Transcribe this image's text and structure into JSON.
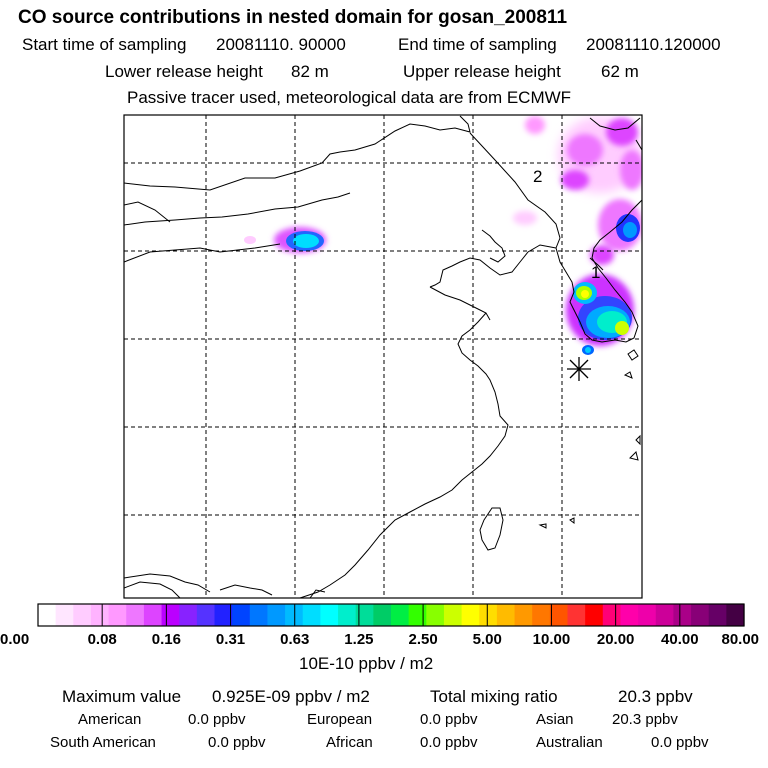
{
  "title": "CO  source contributions in nested domain for gosan_200811",
  "sampling": {
    "start_label": "Start time of sampling",
    "start_value": "20081110. 90000",
    "end_label": "End time of sampling",
    "end_value": "20081110.120000"
  },
  "release": {
    "lower_label": "Lower release height",
    "lower_value": "82 m",
    "upper_label": "Upper release height",
    "upper_value": "62 m"
  },
  "note": "Passive tracer used, meteorological data are from ECMWF",
  "map": {
    "labels": [
      {
        "id": "region-label-1",
        "text": "1"
      },
      {
        "id": "region-label-2",
        "text": "2"
      }
    ],
    "receptor_marker": "asterisk",
    "colors": {
      "coast": "#000000",
      "grid": "#000000",
      "frame": "#000000"
    }
  },
  "colorbar": {
    "tick_labels": [
      "0.00",
      "0.08",
      "0.16",
      "0.31",
      "0.63",
      "1.25",
      "2.50",
      "5.00",
      "10.00",
      "20.00",
      "40.00",
      "80.00"
    ],
    "unit": "10E-10 ppbv / m2",
    "colors": [
      "#ffffff",
      "#ffe6ff",
      "#ffccff",
      "#ffb3ff",
      "#ff99ff",
      "#ee77ff",
      "#dd44ff",
      "#bb00ff",
      "#8822ff",
      "#5533ff",
      "#2222ff",
      "#0044ff",
      "#0077ff",
      "#0099ff",
      "#00bbff",
      "#00ddff",
      "#00ffff",
      "#00eecc",
      "#00dd99",
      "#00cc66",
      "#00ee44",
      "#33ff00",
      "#88ff00",
      "#ccff00",
      "#ffff00",
      "#ffdd00",
      "#ffbb00",
      "#ff9900",
      "#ff7700",
      "#ff5500",
      "#ff3333",
      "#ff0000",
      "#ff0077",
      "#ff00aa",
      "#ee00aa",
      "#cc0099",
      "#aa0088",
      "#880077",
      "#660066",
      "#440044"
    ]
  },
  "stats": {
    "max_label": "Maximum value",
    "max_value": "0.925E-09 ppbv / m2",
    "total_label": "Total mixing ratio",
    "total_value": "20.3 ppbv",
    "regions": [
      {
        "name": "American",
        "value": "0.0 ppbv"
      },
      {
        "name": "European",
        "value": "0.0 ppbv"
      },
      {
        "name": "Asian",
        "value": "20.3 ppbv"
      },
      {
        "name": "South American",
        "value": "0.0 ppbv"
      },
      {
        "name": "African",
        "value": "0.0 ppbv"
      },
      {
        "name": "Australian",
        "value": "0.0 ppbv"
      }
    ]
  }
}
